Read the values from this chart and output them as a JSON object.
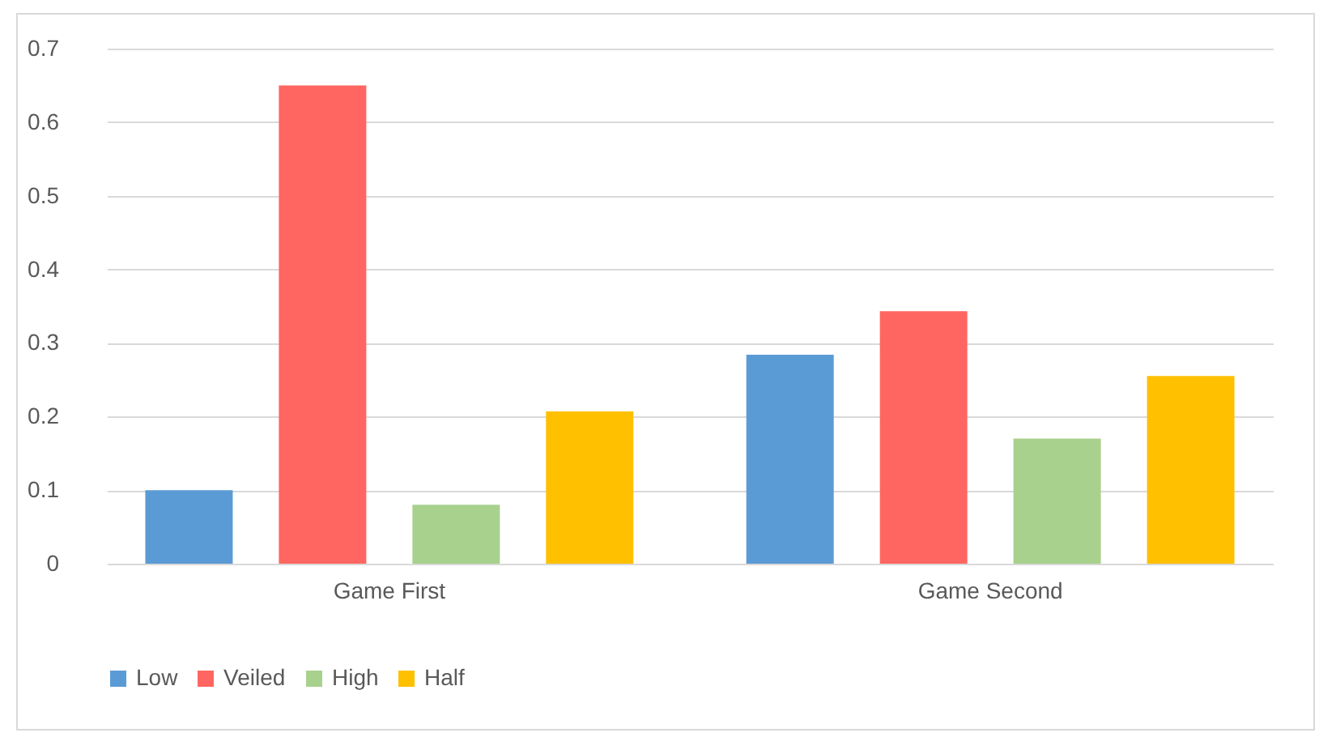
{
  "chart_data": {
    "type": "bar",
    "categories": [
      "Game First",
      "Game Second"
    ],
    "series": [
      {
        "name": "Low",
        "color": "#5b9bd5",
        "values": [
          0.1,
          0.284
        ]
      },
      {
        "name": "Veiled",
        "color": "#ff6661",
        "values": [
          0.65,
          0.343
        ]
      },
      {
        "name": "High",
        "color": "#a9d18e",
        "values": [
          0.08,
          0.17
        ]
      },
      {
        "name": "Half",
        "color": "#ffc000",
        "values": [
          0.207,
          0.255
        ]
      }
    ],
    "ylim": [
      0,
      0.7
    ],
    "yticks": [
      0,
      0.1,
      0.2,
      0.3,
      0.4,
      0.5,
      0.6,
      0.7
    ],
    "grid": "y",
    "legend": "bottom"
  }
}
